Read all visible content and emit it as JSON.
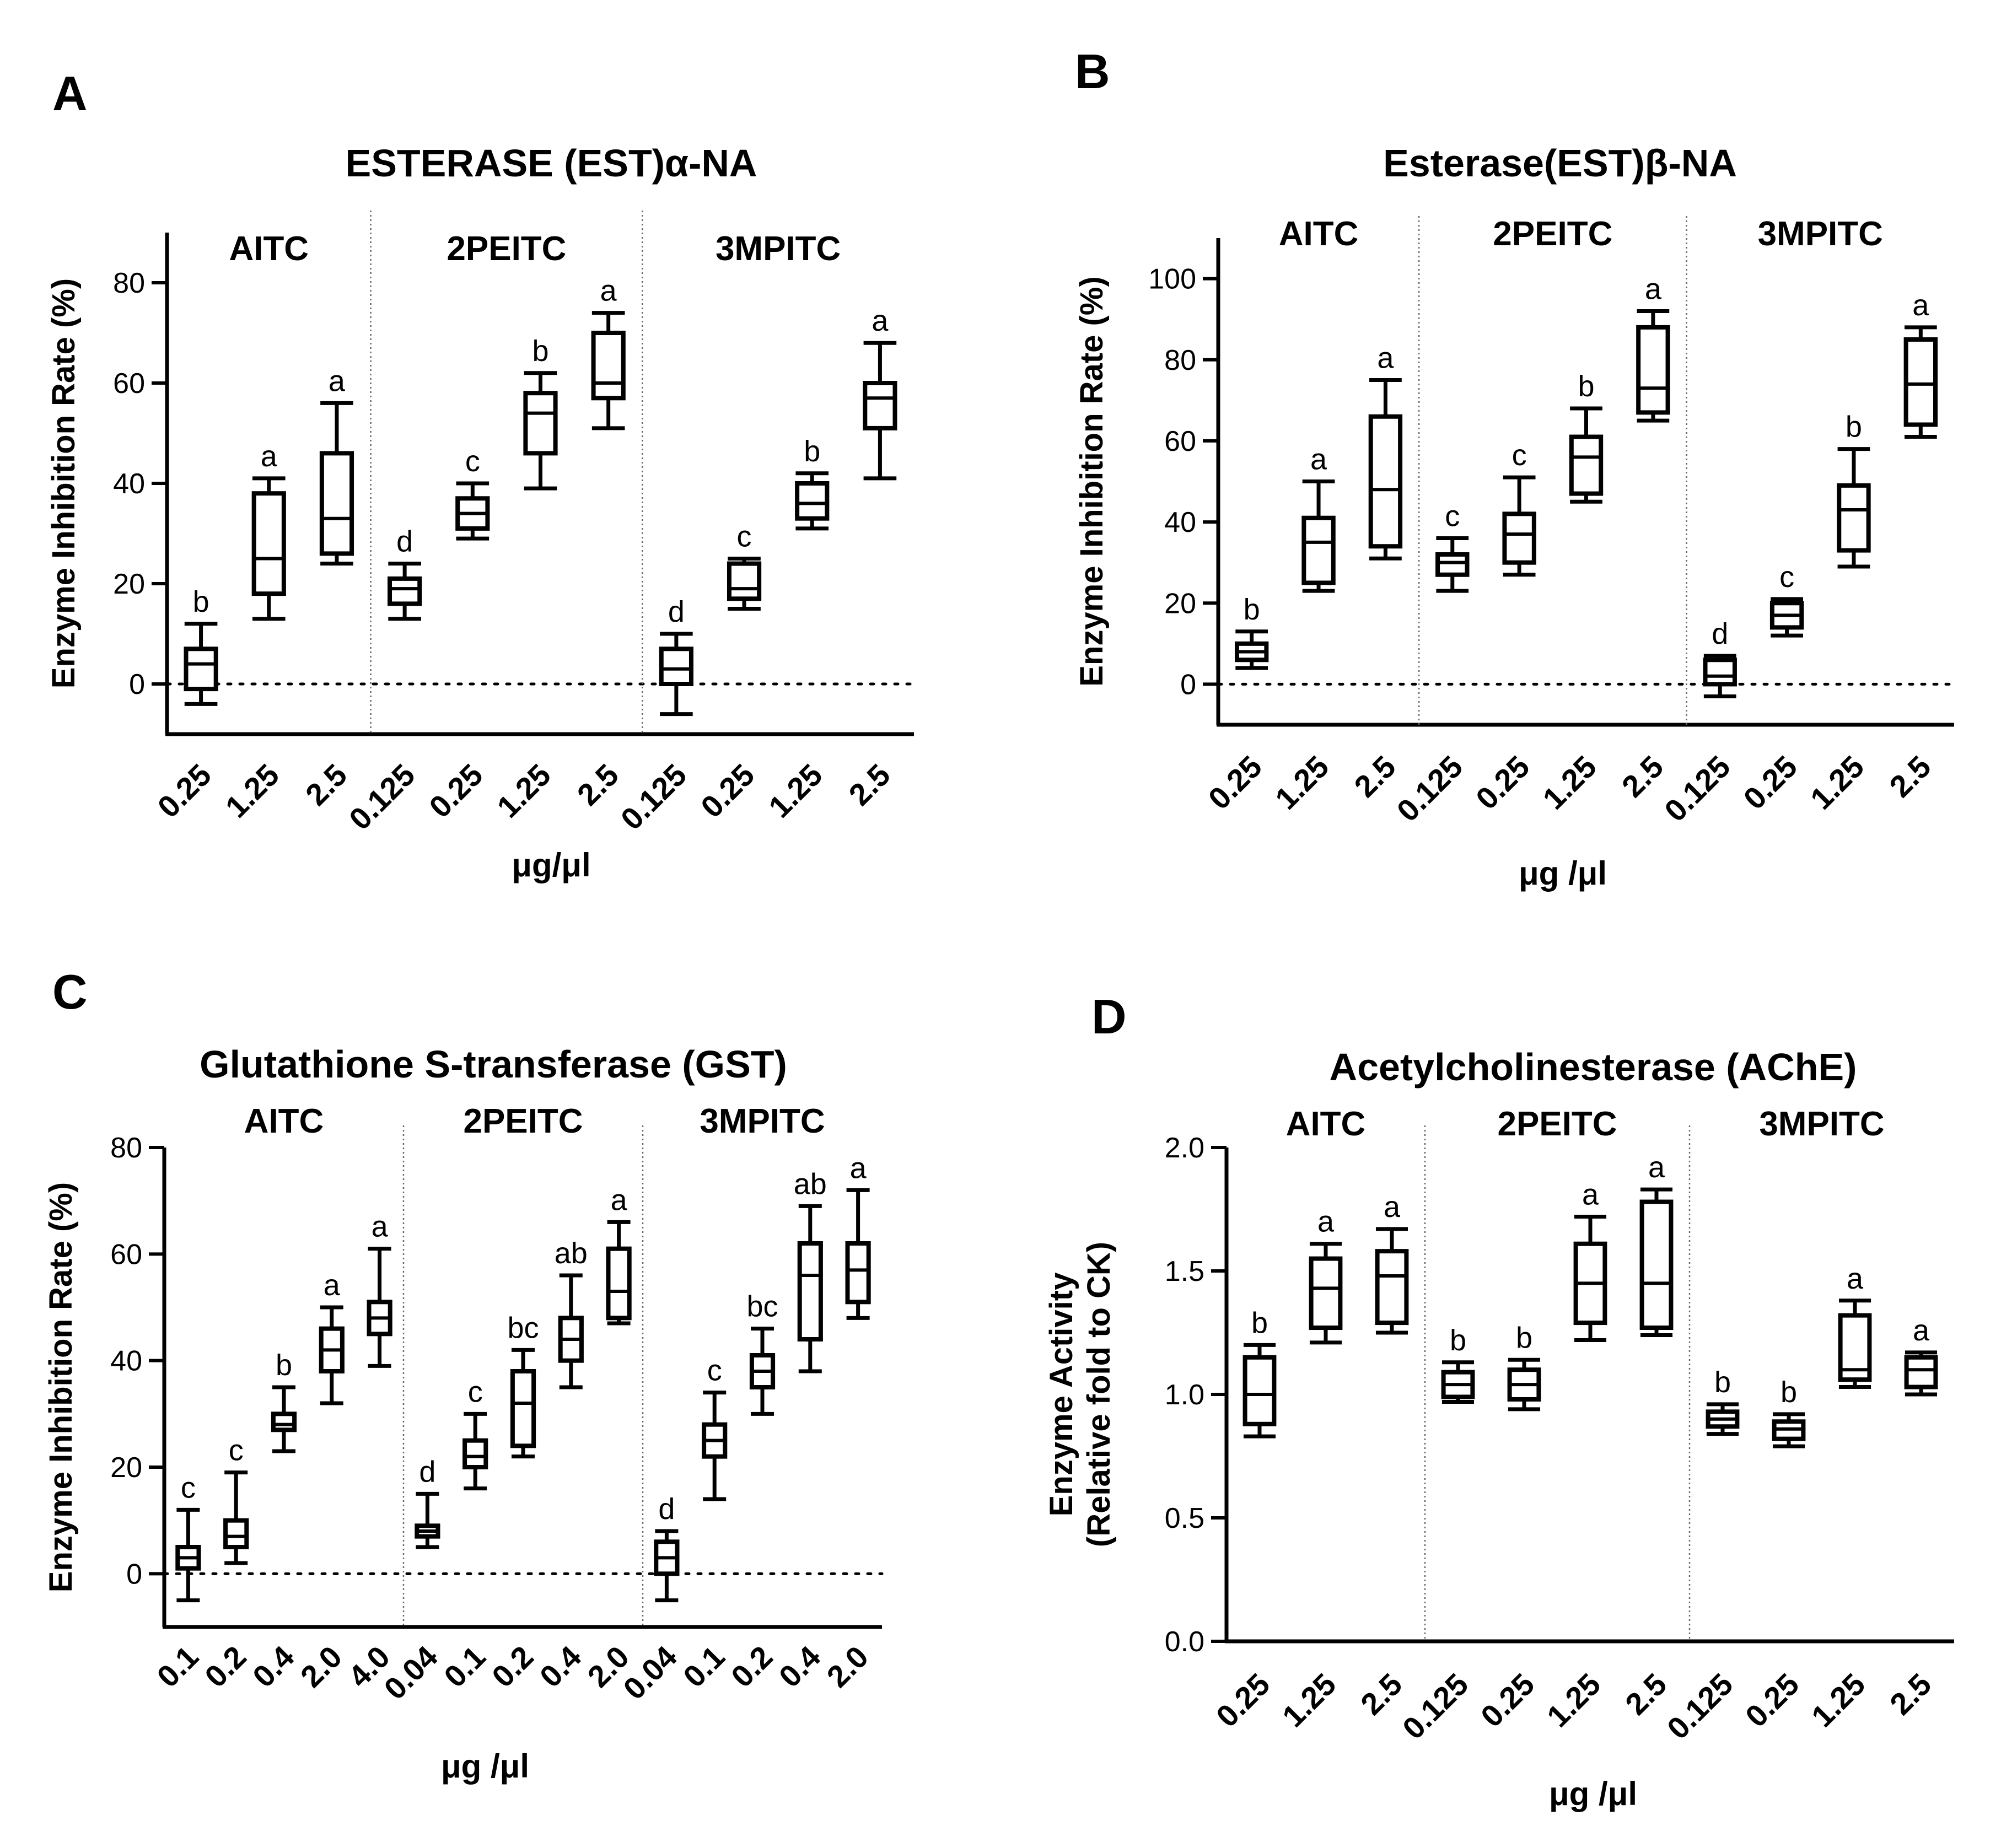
{
  "chart_data": [
    {
      "panel": "A",
      "type": "box",
      "title": "ESTERASE (EST)α-NA",
      "ylabel": "Enzyme Inhibition Rate (%)",
      "xlabel": "μg/μl",
      "ylim": [
        -10,
        90
      ],
      "yticks": [
        0,
        20,
        40,
        60,
        80
      ],
      "groups": [
        {
          "name": "AITC",
          "boxes": [
            {
              "label": "0.25",
              "min": -4,
              "q1": -1,
              "median": 4,
              "q3": 7,
              "max": 12,
              "sig": "b"
            },
            {
              "label": "1.25",
              "min": 13,
              "q1": 18,
              "median": 25,
              "q3": 38,
              "max": 41,
              "sig": "a"
            },
            {
              "label": "2.5",
              "min": 24,
              "q1": 26,
              "median": 33,
              "q3": 46,
              "max": 56,
              "sig": "a"
            }
          ]
        },
        {
          "name": "2PEITC",
          "boxes": [
            {
              "label": "0.125",
              "min": 13,
              "q1": 16,
              "median": 19,
              "q3": 21,
              "max": 24,
              "sig": "d"
            },
            {
              "label": "0.25",
              "min": 29,
              "q1": 31,
              "median": 34,
              "q3": 37,
              "max": 40,
              "sig": "c"
            },
            {
              "label": "1.25",
              "min": 39,
              "q1": 46,
              "median": 54,
              "q3": 58,
              "max": 62,
              "sig": "b"
            },
            {
              "label": "2.5",
              "min": 51,
              "q1": 57,
              "median": 60,
              "q3": 70,
              "max": 74,
              "sig": "a"
            }
          ]
        },
        {
          "name": "3MPITC",
          "boxes": [
            {
              "label": "0.125",
              "min": -6,
              "q1": 0,
              "median": 3,
              "q3": 7,
              "max": 10,
              "sig": "d"
            },
            {
              "label": "0.25",
              "min": 15,
              "q1": 17,
              "median": 19,
              "q3": 24,
              "max": 25,
              "sig": "c"
            },
            {
              "label": "1.25",
              "min": 31,
              "q1": 33,
              "median": 36,
              "q3": 40,
              "max": 42,
              "sig": "b"
            },
            {
              "label": "2.5",
              "min": 41,
              "q1": 51,
              "median": 57,
              "q3": 60,
              "max": 68,
              "sig": "a"
            }
          ]
        }
      ]
    },
    {
      "panel": "B",
      "type": "box",
      "title": "Esterase(EST)β-NA",
      "ylabel": "Enzyme Inhibition Rate (%)",
      "xlabel": "μg /μl",
      "ylim": [
        -10,
        110
      ],
      "yticks": [
        0,
        20,
        40,
        60,
        80,
        100
      ],
      "groups": [
        {
          "name": "AITC",
          "boxes": [
            {
              "label": "0.25",
              "min": 4,
              "q1": 6,
              "median": 8,
              "q3": 10,
              "max": 13,
              "sig": "b"
            },
            {
              "label": "1.25",
              "min": 23,
              "q1": 25,
              "median": 35,
              "q3": 41,
              "max": 50,
              "sig": "a"
            },
            {
              "label": "2.5",
              "min": 31,
              "q1": 34,
              "median": 48,
              "q3": 66,
              "max": 75,
              "sig": "a"
            }
          ]
        },
        {
          "name": "2PEITC",
          "boxes": [
            {
              "label": "0.125",
              "min": 23,
              "q1": 27,
              "median": 30,
              "q3": 32,
              "max": 36,
              "sig": "c"
            },
            {
              "label": "0.25",
              "min": 27,
              "q1": 30,
              "median": 37,
              "q3": 42,
              "max": 51,
              "sig": "c"
            },
            {
              "label": "1.25",
              "min": 45,
              "q1": 47,
              "median": 56,
              "q3": 61,
              "max": 68,
              "sig": "b"
            },
            {
              "label": "2.5",
              "min": 65,
              "q1": 67,
              "median": 73,
              "q3": 88,
              "max": 92,
              "sig": "a"
            }
          ]
        },
        {
          "name": "3MPITC",
          "boxes": [
            {
              "label": "0.125",
              "min": -3,
              "q1": 0,
              "median": 2,
              "q3": 6,
              "max": 7,
              "sig": "d"
            },
            {
              "label": "0.25",
              "min": 12,
              "q1": 14,
              "median": 17,
              "q3": 20,
              "max": 21,
              "sig": "c"
            },
            {
              "label": "1.25",
              "min": 29,
              "q1": 33,
              "median": 43,
              "q3": 49,
              "max": 58,
              "sig": "b"
            },
            {
              "label": "2.5",
              "min": 61,
              "q1": 64,
              "median": 74,
              "q3": 85,
              "max": 88,
              "sig": "a"
            }
          ]
        }
      ]
    },
    {
      "panel": "C",
      "type": "box",
      "title": "Glutathione S-transferase (GST)",
      "ylabel": "Enzyme Inhibition Rate (%)",
      "xlabel": "μg /μl",
      "ylim": [
        -10,
        80
      ],
      "yticks": [
        0,
        20,
        40,
        60,
        80
      ],
      "groups": [
        {
          "name": "AITC",
          "boxes": [
            {
              "label": "0.1",
              "min": -5,
              "q1": 1,
              "median": 3,
              "q3": 5,
              "max": 12,
              "sig": "c"
            },
            {
              "label": "0.2",
              "min": 2,
              "q1": 5,
              "median": 7,
              "q3": 10,
              "max": 19,
              "sig": "c"
            },
            {
              "label": "0.4",
              "min": 23,
              "q1": 27,
              "median": 28,
              "q3": 30,
              "max": 35,
              "sig": "b"
            },
            {
              "label": "2.0",
              "min": 32,
              "q1": 38,
              "median": 42,
              "q3": 46,
              "max": 50,
              "sig": "a"
            },
            {
              "label": "4.0",
              "min": 39,
              "q1": 45,
              "median": 48,
              "q3": 51,
              "max": 61,
              "sig": "a"
            }
          ]
        },
        {
          "name": "2PEITC",
          "boxes": [
            {
              "label": "0.04",
              "min": 5,
              "q1": 7,
              "median": 8,
              "q3": 9,
              "max": 15,
              "sig": "d"
            },
            {
              "label": "0.1",
              "min": 16,
              "q1": 20,
              "median": 22,
              "q3": 25,
              "max": 30,
              "sig": "c"
            },
            {
              "label": "0.2",
              "min": 22,
              "q1": 24,
              "median": 32,
              "q3": 38,
              "max": 42,
              "sig": "bc"
            },
            {
              "label": "0.4",
              "min": 35,
              "q1": 40,
              "median": 44,
              "q3": 48,
              "max": 56,
              "sig": "ab"
            },
            {
              "label": "2.0",
              "min": 47,
              "q1": 48,
              "median": 53,
              "q3": 61,
              "max": 66,
              "sig": "a"
            }
          ]
        },
        {
          "name": "3MPITC",
          "boxes": [
            {
              "label": "0.04",
              "min": -5,
              "q1": 0,
              "median": 3,
              "q3": 6,
              "max": 8,
              "sig": "d"
            },
            {
              "label": "0.1",
              "min": 14,
              "q1": 22,
              "median": 25,
              "q3": 28,
              "max": 34,
              "sig": "c"
            },
            {
              "label": "0.2",
              "min": 30,
              "q1": 35,
              "median": 38,
              "q3": 41,
              "max": 46,
              "sig": "bc"
            },
            {
              "label": "0.4",
              "min": 38,
              "q1": 44,
              "median": 56,
              "q3": 62,
              "max": 69,
              "sig": "ab"
            },
            {
              "label": "2.0",
              "min": 48,
              "q1": 51,
              "median": 57,
              "q3": 62,
              "max": 72,
              "sig": "a"
            }
          ]
        }
      ]
    },
    {
      "panel": "D",
      "type": "box",
      "title": "Acetylcholinesterase (AChE)",
      "ylabel": "Enzyme Activity",
      "ylabel2": "(Relative fold to CK)",
      "xlabel": "μg /μl",
      "ylim": [
        0,
        2.0
      ],
      "yticks": [
        "0.0",
        "0.5",
        "1.0",
        "1.5",
        "2.0"
      ],
      "groups": [
        {
          "name": "AITC",
          "boxes": [
            {
              "label": "0.25",
              "min": 0.83,
              "q1": 0.88,
              "median": 1.0,
              "q3": 1.15,
              "max": 1.2,
              "sig": "b"
            },
            {
              "label": "1.25",
              "min": 1.21,
              "q1": 1.27,
              "median": 1.43,
              "q3": 1.55,
              "max": 1.61,
              "sig": "a"
            },
            {
              "label": "2.5",
              "min": 1.25,
              "q1": 1.29,
              "median": 1.48,
              "q3": 1.58,
              "max": 1.67,
              "sig": "a"
            }
          ]
        },
        {
          "name": "2PEITC",
          "boxes": [
            {
              "label": "0.125",
              "min": 0.97,
              "q1": 0.99,
              "median": 1.04,
              "q3": 1.09,
              "max": 1.13,
              "sig": "b"
            },
            {
              "label": "0.25",
              "min": 0.94,
              "q1": 0.98,
              "median": 1.04,
              "q3": 1.1,
              "max": 1.14,
              "sig": "b"
            },
            {
              "label": "1.25",
              "min": 1.22,
              "q1": 1.29,
              "median": 1.45,
              "q3": 1.61,
              "max": 1.72,
              "sig": "a"
            },
            {
              "label": "2.5",
              "min": 1.24,
              "q1": 1.27,
              "median": 1.45,
              "q3": 1.78,
              "max": 1.83,
              "sig": "a"
            }
          ]
        },
        {
          "name": "3MPITC",
          "boxes": [
            {
              "label": "0.125",
              "min": 0.84,
              "q1": 0.87,
              "median": 0.9,
              "q3": 0.93,
              "max": 0.96,
              "sig": "b"
            },
            {
              "label": "0.25",
              "min": 0.79,
              "q1": 0.82,
              "median": 0.86,
              "q3": 0.89,
              "max": 0.92,
              "sig": "b"
            },
            {
              "label": "1.25",
              "min": 1.03,
              "q1": 1.06,
              "median": 1.1,
              "q3": 1.32,
              "max": 1.38,
              "sig": "a"
            },
            {
              "label": "2.5",
              "min": 1.0,
              "q1": 1.03,
              "median": 1.1,
              "q3": 1.15,
              "max": 1.17,
              "sig": "a"
            }
          ]
        }
      ]
    }
  ]
}
